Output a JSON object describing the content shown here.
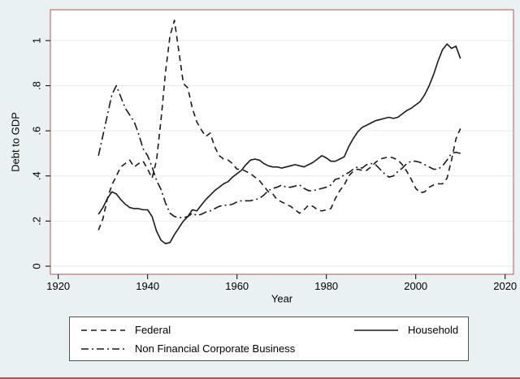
{
  "figure": {
    "background": "#eaf1f2",
    "plot_background": "#ffffff",
    "plot_border_color": "#c0504d",
    "grid_color": "#e2eeed",
    "line_color": "#1a1a1a",
    "legend_border_color": "#545454"
  },
  "axes": {
    "y_title": "Debt to GDP",
    "x_title": "Year",
    "y_ticks": [
      {
        "value": 0,
        "label": "0"
      },
      {
        "value": 0.2,
        "label": ".2"
      },
      {
        "value": 0.4,
        "label": ".4"
      },
      {
        "value": 0.6,
        "label": ".6"
      },
      {
        "value": 0.8,
        "label": ".8"
      },
      {
        "value": 1,
        "label": "1"
      }
    ],
    "x_ticks": [
      {
        "value": 1920,
        "label": "1920"
      },
      {
        "value": 1940,
        "label": "1940"
      },
      {
        "value": 1960,
        "label": "1960"
      },
      {
        "value": 1980,
        "label": "1980"
      },
      {
        "value": 2000,
        "label": "2000"
      },
      {
        "value": 2020,
        "label": "2020"
      }
    ]
  },
  "legend": {
    "items": [
      {
        "label": "Federal",
        "style": "dash"
      },
      {
        "label": "Household",
        "style": "solid"
      },
      {
        "label": "Non Financial Corporate Business",
        "style": "dashdot"
      }
    ]
  },
  "chart_data": {
    "type": "line",
    "title": "",
    "xlabel": "Year",
    "ylabel": "Debt to GDP",
    "x_axis_range": [
      1918,
      2022
    ],
    "ylim": [
      0,
      1.1
    ],
    "grid": "horizontal",
    "legend_position": "bottom",
    "years": [
      1929,
      1930,
      1931,
      1932,
      1933,
      1934,
      1935,
      1936,
      1937,
      1938,
      1939,
      1940,
      1941,
      1942,
      1943,
      1944,
      1945,
      1946,
      1947,
      1948,
      1949,
      1950,
      1951,
      1952,
      1953,
      1954,
      1955,
      1956,
      1957,
      1958,
      1959,
      1960,
      1961,
      1962,
      1963,
      1964,
      1965,
      1966,
      1967,
      1968,
      1969,
      1970,
      1971,
      1972,
      1973,
      1974,
      1975,
      1976,
      1977,
      1978,
      1979,
      1980,
      1981,
      1982,
      1983,
      1984,
      1985,
      1986,
      1987,
      1988,
      1989,
      1990,
      1991,
      1992,
      1993,
      1994,
      1995,
      1996,
      1997,
      1998,
      1999,
      2000,
      2001,
      2002,
      2003,
      2004,
      2005,
      2006,
      2007,
      2008,
      2009,
      2010
    ],
    "series": [
      {
        "name": "Federal",
        "style": "dash",
        "values": [
          0.16,
          0.21,
          0.3,
          0.36,
          0.4,
          0.44,
          0.455,
          0.47,
          0.44,
          0.455,
          0.465,
          0.43,
          0.39,
          0.47,
          0.65,
          0.86,
          1.02,
          1.09,
          0.95,
          0.81,
          0.79,
          0.7,
          0.64,
          0.605,
          0.575,
          0.59,
          0.53,
          0.49,
          0.475,
          0.47,
          0.455,
          0.43,
          0.43,
          0.42,
          0.41,
          0.395,
          0.38,
          0.355,
          0.33,
          0.32,
          0.295,
          0.285,
          0.275,
          0.265,
          0.25,
          0.235,
          0.25,
          0.27,
          0.265,
          0.25,
          0.245,
          0.25,
          0.255,
          0.3,
          0.335,
          0.36,
          0.4,
          0.42,
          0.43,
          0.425,
          0.425,
          0.44,
          0.46,
          0.475,
          0.48,
          0.485,
          0.48,
          0.47,
          0.45,
          0.42,
          0.385,
          0.345,
          0.325,
          0.33,
          0.35,
          0.36,
          0.365,
          0.365,
          0.39,
          0.47,
          0.565,
          0.61
        ]
      },
      {
        "name": "Household",
        "style": "solid",
        "values": [
          0.23,
          0.26,
          0.3,
          0.33,
          0.32,
          0.295,
          0.275,
          0.26,
          0.255,
          0.255,
          0.25,
          0.25,
          0.22,
          0.155,
          0.115,
          0.1,
          0.105,
          0.14,
          0.17,
          0.2,
          0.22,
          0.25,
          0.245,
          0.27,
          0.295,
          0.315,
          0.335,
          0.35,
          0.365,
          0.375,
          0.395,
          0.41,
          0.425,
          0.45,
          0.47,
          0.475,
          0.47,
          0.455,
          0.445,
          0.44,
          0.44,
          0.435,
          0.44,
          0.445,
          0.45,
          0.445,
          0.44,
          0.45,
          0.46,
          0.475,
          0.49,
          0.48,
          0.465,
          0.465,
          0.475,
          0.485,
          0.53,
          0.565,
          0.595,
          0.615,
          0.625,
          0.635,
          0.645,
          0.65,
          0.655,
          0.66,
          0.655,
          0.66,
          0.675,
          0.69,
          0.7,
          0.715,
          0.73,
          0.76,
          0.8,
          0.85,
          0.91,
          0.96,
          0.985,
          0.965,
          0.975,
          0.92
        ]
      },
      {
        "name": "Non Financial Corporate Business",
        "style": "dashdot",
        "values": [
          0.49,
          0.58,
          0.67,
          0.76,
          0.8,
          0.75,
          0.7,
          0.67,
          0.64,
          0.585,
          0.52,
          0.49,
          0.44,
          0.38,
          0.34,
          0.28,
          0.235,
          0.22,
          0.215,
          0.215,
          0.22,
          0.235,
          0.225,
          0.23,
          0.24,
          0.245,
          0.255,
          0.265,
          0.27,
          0.27,
          0.275,
          0.285,
          0.29,
          0.29,
          0.29,
          0.295,
          0.3,
          0.315,
          0.335,
          0.345,
          0.35,
          0.36,
          0.35,
          0.35,
          0.355,
          0.36,
          0.345,
          0.335,
          0.335,
          0.34,
          0.345,
          0.35,
          0.36,
          0.385,
          0.39,
          0.405,
          0.415,
          0.43,
          0.44,
          0.435,
          0.45,
          0.455,
          0.45,
          0.43,
          0.41,
          0.395,
          0.4,
          0.42,
          0.435,
          0.455,
          0.465,
          0.465,
          0.46,
          0.45,
          0.44,
          0.43,
          0.43,
          0.445,
          0.47,
          0.5,
          0.505,
          0.5
        ]
      }
    ]
  }
}
